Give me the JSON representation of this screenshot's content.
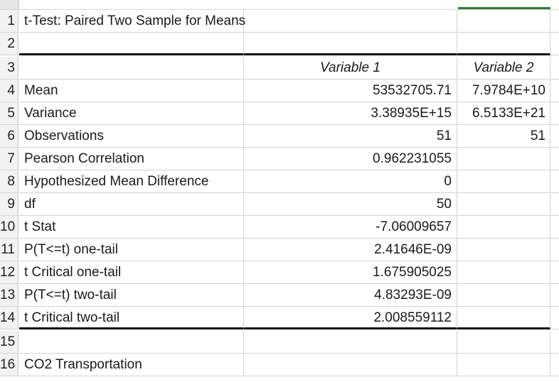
{
  "title": "t-Test: Paired Two Sample for Means",
  "headers": {
    "var1": "Variable 1",
    "var2": "Variable 2"
  },
  "rows": [
    {
      "num": "1",
      "label": "t-Test: Paired Two Sample for Means",
      "v1": "",
      "v2": ""
    },
    {
      "num": "2",
      "label": "",
      "v1": "",
      "v2": ""
    },
    {
      "num": "3",
      "label": "",
      "v1": "Variable 1",
      "v2": "Variable 2"
    },
    {
      "num": "4",
      "label": "Mean",
      "v1": "53532705.71",
      "v2": "7.9784E+10"
    },
    {
      "num": "5",
      "label": "Variance",
      "v1": "3.38935E+15",
      "v2": "6.5133E+21"
    },
    {
      "num": "6",
      "label": "Observations",
      "v1": "51",
      "v2": "51"
    },
    {
      "num": "7",
      "label": "Pearson Correlation",
      "v1": "0.962231055",
      "v2": ""
    },
    {
      "num": "8",
      "label": "Hypothesized Mean Difference",
      "v1": "0",
      "v2": ""
    },
    {
      "num": "9",
      "label": "df",
      "v1": "50",
      "v2": ""
    },
    {
      "num": "10",
      "label": "t Stat",
      "v1": "-7.06009657",
      "v2": ""
    },
    {
      "num": "11",
      "label": "P(T<=t) one-tail",
      "v1": "2.41646E-09",
      "v2": ""
    },
    {
      "num": "12",
      "label": "t Critical one-tail",
      "v1": "1.675905025",
      "v2": ""
    },
    {
      "num": "13",
      "label": "P(T<=t) two-tail",
      "v1": "4.83293E-09",
      "v2": ""
    },
    {
      "num": "14",
      "label": "t Critical two-tail",
      "v1": "2.008559112",
      "v2": ""
    },
    {
      "num": "15",
      "label": "",
      "v1": "",
      "v2": ""
    },
    {
      "num": "16",
      "label": "CO2 Transportation",
      "v1": "",
      "v2": ""
    }
  ],
  "colors": {
    "selection": "#2e7d32",
    "grid": "#d4d4d4",
    "header_bg": "#f2f2f2"
  }
}
